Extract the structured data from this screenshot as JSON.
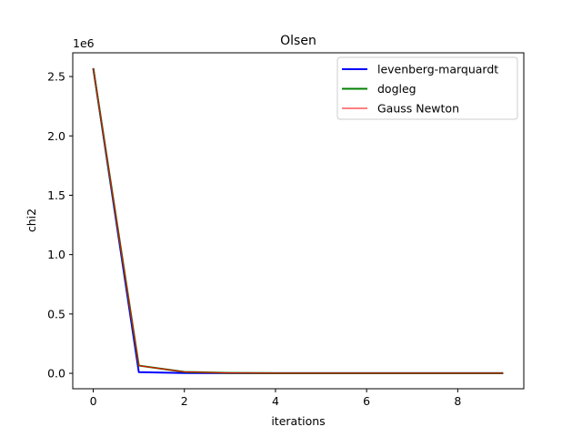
{
  "chart_data": {
    "type": "line",
    "title": "Olsen",
    "xlabel": "iterations",
    "ylabel": "chi2",
    "y_offset_label": "1e6",
    "xlim": [
      -0.45,
      9.45
    ],
    "ylim": [
      -0.13,
      2.7
    ],
    "xticks": [
      0,
      2,
      4,
      6,
      8
    ],
    "xtick_labels": [
      "0",
      "2",
      "4",
      "6",
      "8"
    ],
    "yticks": [
      0.0,
      0.5,
      1.0,
      1.5,
      2.0,
      2.5
    ],
    "ytick_labels": [
      "0.0",
      "0.5",
      "1.0",
      "1.5",
      "2.0",
      "2.5"
    ],
    "y_unit_scale": 1000000,
    "grid": false,
    "legend_position": "upper right",
    "x": [
      0,
      1,
      2,
      3,
      4,
      5,
      6,
      7,
      8,
      9
    ],
    "series": [
      {
        "name": "levenberg-marquardt",
        "color": "#0000ff",
        "values": [
          2570000,
          10000,
          2000,
          1000,
          1000,
          1000,
          1000,
          1000,
          1000,
          1000
        ]
      },
      {
        "name": "dogleg",
        "color": "#008000",
        "values": [
          2570000,
          65000,
          12000,
          3000,
          1000,
          1000,
          1000,
          1000,
          1000,
          1000
        ]
      },
      {
        "name": "Gauss Newton",
        "color": "#ff0000",
        "values": [
          2570000,
          65000,
          12000,
          3000,
          1000,
          1000,
          1000,
          1000,
          1000,
          1000
        ]
      }
    ]
  }
}
